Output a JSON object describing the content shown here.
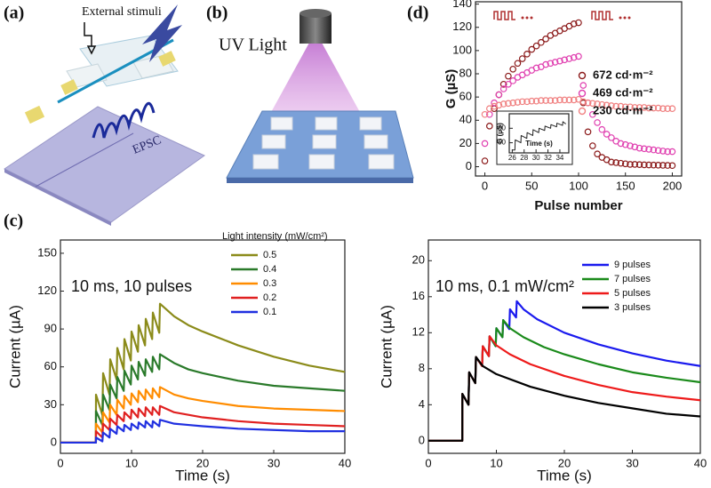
{
  "panels": {
    "a": {
      "label": "(a)",
      "stimulus": "External stimuli",
      "response": "EPSC"
    },
    "b": {
      "label": "(b)",
      "source": "UV Light"
    },
    "c": {
      "label": "(c)"
    },
    "d": {
      "label": "(d)"
    }
  },
  "chart_data": [
    {
      "type": "scatter",
      "x_label": "Pulse number",
      "y_label": "G (µS)",
      "xlim": [
        -10,
        210
      ],
      "ylim": [
        -8,
        142
      ],
      "xticks": [
        0,
        50,
        100,
        150,
        200
      ],
      "yticks": [
        0,
        20,
        40,
        60,
        80,
        100,
        120,
        140
      ],
      "x": [
        0,
        5,
        10,
        15,
        20,
        25,
        30,
        35,
        40,
        45,
        50,
        55,
        60,
        65,
        70,
        75,
        80,
        85,
        90,
        95,
        100,
        105,
        110,
        115,
        120,
        125,
        130,
        135,
        140,
        145,
        150,
        155,
        160,
        165,
        170,
        175,
        180,
        185,
        190,
        195,
        200
      ],
      "series": [
        {
          "name": "672 cd·m⁻²",
          "color": "#8b1a1a",
          "values": [
            5,
            35,
            50,
            62,
            71,
            78,
            84,
            89,
            93,
            97,
            101,
            104,
            107,
            110,
            113,
            115,
            117,
            119,
            121,
            123,
            124,
            55,
            30,
            18,
            11,
            8,
            6,
            4,
            3.5,
            3,
            2.5,
            2,
            2,
            1.8,
            1.6,
            1.5,
            1.4,
            1.3,
            1.2,
            1.1,
            1
          ]
        },
        {
          "name": "469 cd·m⁻²",
          "color": "#e040b0",
          "values": [
            20,
            45,
            55,
            62,
            67,
            71,
            74,
            77,
            79,
            81,
            83,
            85,
            86,
            88,
            89,
            90,
            91,
            92,
            93,
            94,
            95,
            70,
            55,
            45,
            38,
            32,
            28,
            25,
            22,
            20,
            19,
            18,
            17,
            16,
            15.5,
            15,
            14.5,
            14,
            13.5,
            13,
            13
          ]
        },
        {
          "name": "230 cd·m⁻²",
          "color": "#f08080",
          "values": [
            45,
            50,
            52,
            53,
            54,
            54.5,
            55,
            55.5,
            56,
            56,
            56.5,
            56.5,
            57,
            57,
            57,
            57,
            57.5,
            57.5,
            57.5,
            57.5,
            58,
            56,
            55,
            54.5,
            54,
            53.5,
            53,
            52.5,
            52,
            52,
            51.5,
            51.5,
            51,
            51,
            51,
            50.5,
            50.5,
            50.5,
            50,
            50,
            50
          ]
        }
      ]
    },
    {
      "type": "line",
      "x_label": "Time (s)",
      "y_label": "G (µS)",
      "xlim": [
        25.5,
        35.5
      ],
      "ylim": [
        43,
        70
      ],
      "xticks": [
        26,
        28,
        30,
        32,
        34
      ],
      "yticks": [
        50,
        60
      ],
      "x": [
        26,
        26.45,
        26.5,
        27.45,
        27.5,
        28.45,
        28.5,
        29.45,
        29.5,
        30.45,
        30.5,
        31.45,
        31.5,
        32.45,
        32.5,
        33.45,
        33.5,
        34.45,
        34.5,
        35
      ],
      "series": [
        {
          "color": "#222222",
          "values": [
            45,
            45,
            52,
            50,
            55,
            53,
            57,
            55,
            59,
            57,
            60,
            58.5,
            61.5,
            60,
            62.5,
            61,
            63.5,
            62,
            64.5,
            63
          ]
        }
      ]
    },
    {
      "type": "line",
      "x_label": "Time (s)",
      "y_label": "Current (µA)",
      "annotation": "10 ms, 10 pulses",
      "legend_title": "Light intensity (mW/cm²)",
      "xlim": [
        0,
        40
      ],
      "ylim": [
        -8.5,
        160.5
      ],
      "xticks": [
        0,
        10,
        20,
        30,
        40
      ],
      "yticks": [
        0,
        30,
        60,
        90,
        120,
        150
      ],
      "x": [
        0,
        4.99,
        5,
        5.9,
        6,
        6.9,
        7,
        7.9,
        8,
        8.9,
        9,
        9.9,
        10,
        10.9,
        11,
        11.9,
        12,
        12.9,
        13,
        13.9,
        14,
        16,
        18,
        20,
        25,
        30,
        35,
        40
      ],
      "series": [
        {
          "name": "0.5",
          "color": "#8b8b1a",
          "values": [
            0,
            0,
            38,
            22,
            55,
            38,
            66,
            50,
            75,
            58,
            82,
            65,
            88,
            72,
            93,
            77,
            98,
            82,
            103,
            87,
            110,
            100,
            93,
            88,
            77,
            68,
            61,
            56
          ]
        },
        {
          "name": "0.4",
          "color": "#2a7a2a",
          "values": [
            0,
            0,
            25,
            14,
            38,
            26,
            46,
            35,
            52,
            41,
            57,
            46,
            61,
            50,
            64,
            53,
            66,
            56,
            68,
            58,
            70,
            63,
            58,
            55,
            49,
            45,
            43,
            41
          ]
        },
        {
          "name": "0.3",
          "color": "#ff8c00",
          "values": [
            0,
            0,
            15,
            8,
            24,
            16,
            30,
            22,
            34,
            27,
            37,
            30,
            39,
            32,
            41,
            34,
            42,
            35,
            43,
            36,
            44,
            38,
            35,
            33,
            29,
            27,
            26,
            25
          ]
        },
        {
          "name": "0.2",
          "color": "#e02020",
          "values": [
            0,
            0,
            9,
            4,
            15,
            10,
            19,
            14,
            22,
            17,
            24,
            19,
            26,
            20,
            27,
            21,
            28,
            22,
            28,
            22,
            29,
            24,
            22,
            20,
            17,
            15,
            14,
            13
          ]
        },
        {
          "name": "0.1",
          "color": "#2030e0",
          "values": [
            0,
            0,
            4,
            1,
            8,
            4,
            11,
            7,
            13,
            9,
            14,
            10,
            15,
            11,
            16,
            12,
            17,
            12,
            17,
            13,
            18,
            15,
            14,
            13,
            11,
            10,
            9,
            9
          ]
        }
      ]
    },
    {
      "type": "line",
      "x_label": "Time (s)",
      "y_label": "Current (µA)",
      "annotation": "10 ms, 0.1 mW/cm²",
      "xlim": [
        0,
        40
      ],
      "ylim": [
        -1.4,
        22.3
      ],
      "xticks": [
        0,
        10,
        20,
        30,
        40
      ],
      "yticks": [
        0,
        4,
        8,
        12,
        16,
        20
      ],
      "series": [
        {
          "name": "9 pulses",
          "color": "#1a1aee",
          "x": [
            0,
            4.99,
            5,
            5.9,
            6,
            6.9,
            7,
            7.9,
            8,
            8.9,
            9,
            9.9,
            10,
            10.9,
            11,
            11.9,
            12,
            12.9,
            13,
            14,
            16,
            20,
            25,
            30,
            35,
            40
          ],
          "values": [
            0,
            0,
            5.2,
            4,
            7.6,
            6.4,
            9.3,
            8.3,
            10.5,
            9.4,
            11.6,
            10.5,
            12.5,
            11.5,
            13.4,
            12.4,
            14.6,
            13.7,
            15.5,
            14.6,
            13.5,
            12.0,
            10.7,
            9.7,
            8.9,
            8.3
          ]
        },
        {
          "name": "7 pulses",
          "color": "#1a8a1a",
          "x": [
            0,
            4.99,
            5,
            5.9,
            6,
            6.9,
            7,
            7.9,
            8,
            8.9,
            9,
            9.9,
            10,
            10.9,
            11,
            12,
            14,
            17,
            20,
            25,
            30,
            35,
            40
          ],
          "values": [
            0,
            0,
            5.2,
            4,
            7.6,
            6.4,
            9.3,
            8.3,
            10.5,
            9.4,
            11.6,
            10.5,
            12.5,
            11.5,
            13.4,
            12.5,
            11.5,
            10.4,
            9.6,
            8.5,
            7.6,
            7.0,
            6.5
          ]
        },
        {
          "name": "5 pulses",
          "color": "#ee1a1a",
          "x": [
            0,
            4.99,
            5,
            5.9,
            6,
            6.9,
            7,
            7.9,
            8,
            8.9,
            9,
            10,
            12,
            15,
            20,
            25,
            30,
            35,
            40
          ],
          "values": [
            0,
            0,
            5.2,
            4,
            7.6,
            6.4,
            9.3,
            8.3,
            10.5,
            9.4,
            11.6,
            10.6,
            9.6,
            8.5,
            7.2,
            6.2,
            5.4,
            4.9,
            4.5
          ]
        },
        {
          "name": "3 pulses",
          "color": "#000000",
          "x": [
            0,
            4.99,
            5,
            5.9,
            6,
            6.9,
            7,
            8,
            10,
            15,
            20,
            25,
            30,
            35,
            40
          ],
          "values": [
            0,
            0,
            5.2,
            4,
            7.6,
            6.4,
            9.3,
            8.3,
            7.4,
            6.0,
            5.0,
            4.2,
            3.6,
            3.0,
            2.7
          ]
        }
      ]
    }
  ]
}
